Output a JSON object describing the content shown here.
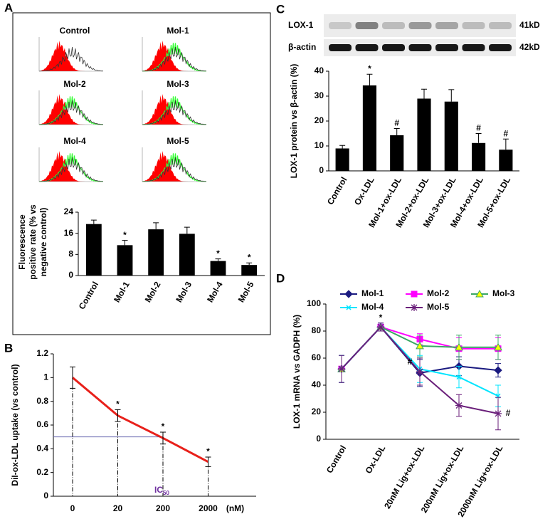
{
  "chart_data": [
    {
      "panel": "A",
      "type": "bar",
      "histogram_labels": [
        "Control",
        "Mol-1",
        "Mol-2",
        "Mol-3",
        "Mol-4",
        "Mol-5"
      ],
      "ylabel": [
        "Fluorescence",
        "positive rate  (% vs",
        "negative control)"
      ],
      "categories": [
        "Control",
        "Mol-1",
        "Mol-2",
        "Mol-3",
        "Mol-4",
        "Mol-5"
      ],
      "values": [
        19.5,
        11.5,
        17.5,
        15.8,
        5.5,
        4.0
      ],
      "errors": [
        1.5,
        1.8,
        2.5,
        2.5,
        0.8,
        0.8
      ],
      "value_annotations": [
        null,
        "*",
        null,
        null,
        "*",
        "*"
      ],
      "color": "#000000",
      "ylim": [
        0,
        24
      ],
      "yticks": [
        0,
        8,
        16,
        24
      ]
    },
    {
      "panel": "B",
      "type": "line",
      "ylabel": "DiI-ox-LDL uptake (vs control)",
      "xlabel": "(nM)",
      "categories": [
        "0",
        "20",
        "200",
        "2000"
      ],
      "values": [
        1,
        0.68,
        0.49,
        0.29
      ],
      "errors": [
        0.09,
        0.05,
        0.05,
        0.04
      ],
      "value_annotations": [
        null,
        "*",
        "*",
        "*"
      ],
      "color": "#e8201a",
      "ylim": [
        0,
        1.2
      ],
      "yticks": [
        0,
        0.2,
        0.4,
        0.6,
        0.8,
        1,
        1.2
      ],
      "reference_y": 0.5,
      "ic50_label": {
        "text": "IC",
        "subscript": "50"
      }
    },
    {
      "panel": "C",
      "type": "bar",
      "blot": [
        {
          "label": "LOX-1",
          "size": "41kD"
        },
        {
          "label": "β-actin",
          "size": "42kD"
        }
      ],
      "ylabel": "LOX-1 protein vs β-actin (%)",
      "categories": [
        "Control",
        "Ox-LDL",
        "Mol-1+ox-LDL",
        "Mol-2+ox-LDL",
        "Mol-3+ox-LDL",
        "Mol-4+ox-LDL",
        "Mol-5+ox-LDL"
      ],
      "values": [
        9,
        34.3,
        14.3,
        29,
        27.8,
        11.2,
        8.5
      ],
      "errors": [
        1.2,
        4.5,
        2.7,
        3.8,
        4.8,
        3.8,
        4.3
      ],
      "value_annotations": [
        null,
        "*",
        "#",
        null,
        null,
        "#",
        "#"
      ],
      "color": "#000000",
      "ylim": [
        0,
        40
      ],
      "yticks": [
        0,
        10,
        20,
        30,
        40
      ]
    },
    {
      "panel": "D",
      "type": "line",
      "ylabel": "LOX-1 mRNA  vs GADPH (%)",
      "categories": [
        "Control",
        "Ox-LDL",
        "20nM Lig+ox-LDL",
        "200nM Lig+ox-LDL",
        "2000nM Lig+ox-LDL"
      ],
      "series": [
        {
          "name": "Mol-1",
          "color": "#1a1a80",
          "marker": "diamond",
          "values": [
            52,
            83,
            49,
            54,
            51
          ],
          "errors": [
            10,
            3,
            10,
            7,
            5
          ]
        },
        {
          "name": "Mol-2",
          "color": "#ff00ff",
          "marker": "square",
          "values": [
            52,
            83,
            74,
            67,
            67
          ],
          "errors": [
            10,
            3,
            4,
            8,
            8
          ]
        },
        {
          "name": "Mol-3",
          "color": "#3aa864",
          "marker": "triangle",
          "values": [
            52,
            83,
            69,
            68,
            68
          ],
          "errors": [
            10,
            3,
            8,
            9,
            9
          ]
        },
        {
          "name": "Mol-4",
          "color": "#00e5ff",
          "marker": "x",
          "values": [
            52,
            83,
            52,
            46,
            32
          ],
          "errors": [
            10,
            3,
            10,
            8,
            8
          ]
        },
        {
          "name": "Mol-5",
          "color": "#6a1f7a",
          "marker": "star",
          "values": [
            52,
            83,
            50,
            25,
            19
          ],
          "errors": [
            10,
            3,
            10,
            8,
            12
          ]
        }
      ],
      "point_annotations": [
        null,
        "*",
        "#",
        null,
        "#"
      ],
      "legend": "top",
      "ylim": [
        0,
        100
      ],
      "yticks": [
        0,
        20,
        40,
        60,
        80,
        100
      ]
    }
  ]
}
